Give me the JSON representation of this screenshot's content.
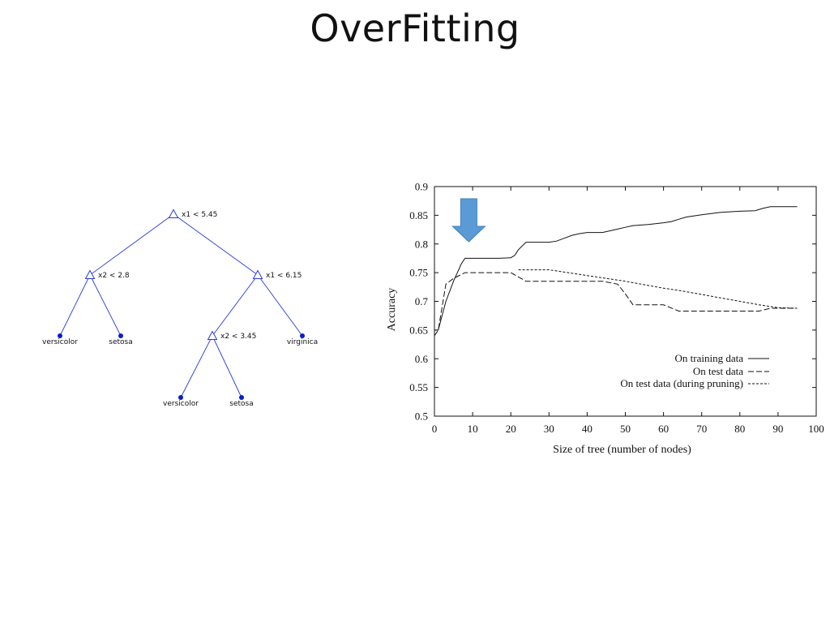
{
  "slide": {
    "title": "OverFitting"
  },
  "tree": {
    "edge_color": "#2a3bd6",
    "node_color": "#0a1ccc",
    "nodes": [
      {
        "id": "root",
        "kind": "split",
        "label": "x1 < 5.45"
      },
      {
        "id": "left",
        "kind": "split",
        "label": "x2 < 2.8"
      },
      {
        "id": "right",
        "kind": "split",
        "label": "x1 < 6.15"
      },
      {
        "id": "left-left",
        "kind": "leaf",
        "label": "versicolor"
      },
      {
        "id": "left-right",
        "kind": "leaf",
        "label": "setosa"
      },
      {
        "id": "right-left",
        "kind": "split",
        "label": "x2 < 3.45"
      },
      {
        "id": "right-right",
        "kind": "leaf",
        "label": "virginica"
      },
      {
        "id": "rl-left",
        "kind": "leaf",
        "label": "versicolor"
      },
      {
        "id": "rl-right",
        "kind": "leaf",
        "label": "setosa"
      }
    ],
    "edges": [
      [
        "root",
        "left"
      ],
      [
        "root",
        "right"
      ],
      [
        "left",
        "left-left"
      ],
      [
        "left",
        "left-right"
      ],
      [
        "right",
        "right-left"
      ],
      [
        "right",
        "right-right"
      ],
      [
        "right-left",
        "rl-left"
      ],
      [
        "right-left",
        "rl-right"
      ]
    ]
  },
  "chart_data": {
    "type": "line",
    "xlabel": "Size of tree (number of nodes)",
    "ylabel": "Accuracy",
    "xlim": [
      0,
      100
    ],
    "ylim": [
      0.5,
      0.9
    ],
    "xticks": [
      0,
      10,
      20,
      30,
      40,
      50,
      60,
      70,
      80,
      90,
      100
    ],
    "yticks": [
      0.5,
      0.55,
      0.6,
      0.65,
      0.7,
      0.75,
      0.8,
      0.85,
      0.9
    ],
    "grid": false,
    "legend_position": "bottom-right",
    "annotation": {
      "kind": "down-arrow",
      "at_x": 9,
      "color": "#5b9bd5"
    },
    "series": [
      {
        "name": "On training data",
        "style": "solid",
        "x": [
          0,
          1,
          3,
          5,
          6,
          7,
          8,
          10,
          12,
          14,
          16,
          17,
          20,
          21,
          22,
          24,
          26,
          29,
          30,
          32,
          34,
          36,
          38,
          40,
          44,
          46,
          48,
          50,
          52,
          56,
          60,
          62,
          64,
          66,
          68,
          70,
          75,
          80,
          84,
          86,
          88,
          95
        ],
        "y": [
          0.65,
          0.65,
          0.7,
          0.735,
          0.75,
          0.765,
          0.775,
          0.775,
          0.775,
          0.775,
          0.775,
          0.775,
          0.776,
          0.78,
          0.79,
          0.803,
          0.803,
          0.803,
          0.803,
          0.805,
          0.81,
          0.815,
          0.818,
          0.82,
          0.82,
          0.823,
          0.826,
          0.829,
          0.832,
          0.834,
          0.837,
          0.839,
          0.843,
          0.847,
          0.849,
          0.851,
          0.855,
          0.857,
          0.858,
          0.862,
          0.865,
          0.865
        ]
      },
      {
        "name": "On test data",
        "style": "dashed",
        "x": [
          0,
          1,
          2,
          3,
          5,
          8,
          10,
          15,
          20,
          24,
          30,
          40,
          44,
          48,
          50,
          52,
          56,
          60,
          64,
          66,
          70,
          76,
          82,
          85,
          88,
          95
        ],
        "y": [
          0.64,
          0.65,
          0.69,
          0.73,
          0.74,
          0.75,
          0.75,
          0.75,
          0.75,
          0.735,
          0.735,
          0.735,
          0.735,
          0.73,
          0.713,
          0.694,
          0.694,
          0.694,
          0.683,
          0.683,
          0.683,
          0.683,
          0.683,
          0.683,
          0.688,
          0.688
        ]
      },
      {
        "name": "On test data (during pruning)",
        "style": "dotted",
        "x": [
          22,
          26,
          30,
          35,
          40,
          45,
          50,
          55,
          60,
          65,
          70,
          75,
          80,
          85,
          90,
          95
        ],
        "y": [
          0.755,
          0.755,
          0.755,
          0.75,
          0.745,
          0.74,
          0.735,
          0.729,
          0.723,
          0.718,
          0.712,
          0.706,
          0.7,
          0.694,
          0.689,
          0.688
        ]
      }
    ]
  }
}
